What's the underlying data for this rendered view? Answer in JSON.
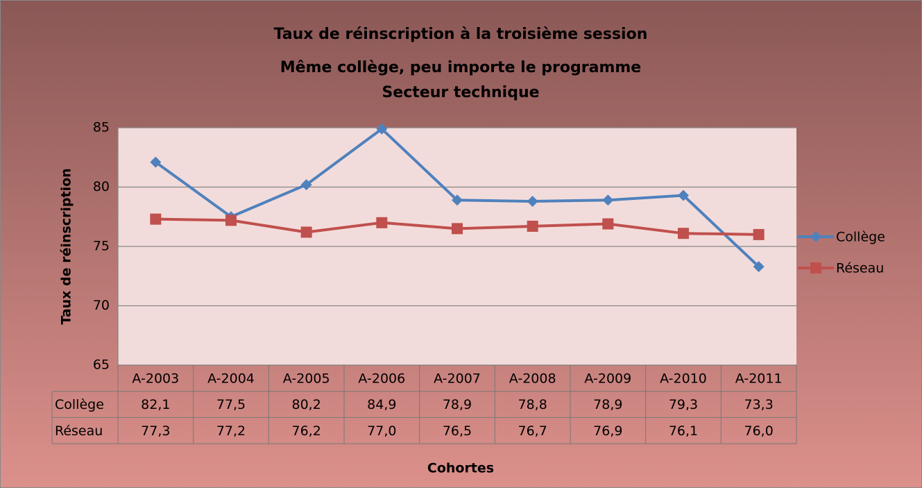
{
  "chart_data": {
    "type": "line",
    "title": [
      "Taux de réinscription à la troisième session",
      "Même collège, peu importe le programme",
      "Secteur technique"
    ],
    "ylabel": "Taux de réinscription",
    "xlabel": "Cohortes",
    "categories": [
      "A-2003",
      "A-2004",
      "A-2005",
      "A-2006",
      "A-2007",
      "A-2008",
      "A-2009",
      "A-2010",
      "A-2011"
    ],
    "series": [
      {
        "name": "Collège",
        "color": "#4f81bd",
        "marker": "diamond",
        "values": [
          82.1,
          77.5,
          80.2,
          84.9,
          78.9,
          78.8,
          78.9,
          79.3,
          73.3
        ],
        "value_labels": [
          "82,1",
          "77,5",
          "80,2",
          "84,9",
          "78,9",
          "78,8",
          "78,9",
          "79,3",
          "73,3"
        ]
      },
      {
        "name": "Réseau",
        "color": "#c0504d",
        "marker": "square",
        "values": [
          77.3,
          77.2,
          76.2,
          77.0,
          76.5,
          76.7,
          76.9,
          76.1,
          76.0
        ],
        "value_labels": [
          "77,3",
          "77,2",
          "76,2",
          "77,0",
          "76,5",
          "76,7",
          "76,9",
          "76,1",
          "76,0"
        ]
      }
    ],
    "ylim": [
      65,
      85
    ],
    "yticks": [
      65,
      70,
      75,
      80,
      85
    ],
    "grid": true,
    "legend": "right"
  }
}
